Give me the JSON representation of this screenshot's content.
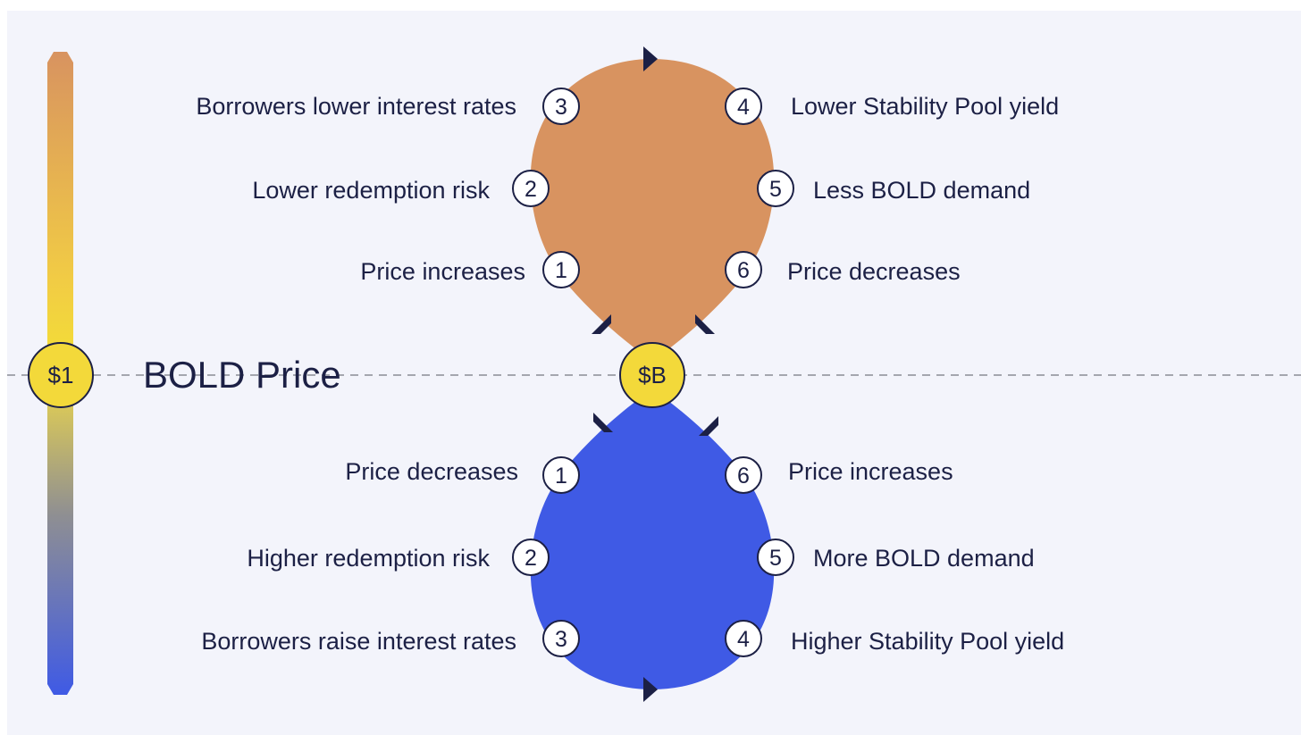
{
  "title": "BOLD Price",
  "scale_coin": "$1",
  "center_coin": "$B",
  "colors": {
    "background": "#f3f4fb",
    "top_loop": "#d89360",
    "bottom_loop": "#3f5ae5",
    "coin": "#f3d93a",
    "ink": "#1c2045"
  },
  "top_loop": {
    "steps": [
      {
        "n": "1",
        "label": "Price increases"
      },
      {
        "n": "2",
        "label": "Lower redemption risk"
      },
      {
        "n": "3",
        "label": "Borrowers lower interest rates"
      },
      {
        "n": "4",
        "label": "Lower Stability Pool yield"
      },
      {
        "n": "5",
        "label": "Less BOLD demand"
      },
      {
        "n": "6",
        "label": "Price decreases"
      }
    ]
  },
  "bottom_loop": {
    "steps": [
      {
        "n": "1",
        "label": "Price decreases"
      },
      {
        "n": "2",
        "label": "Higher redemption risk"
      },
      {
        "n": "3",
        "label": "Borrowers raise interest rates"
      },
      {
        "n": "4",
        "label": "Higher Stability Pool yield"
      },
      {
        "n": "5",
        "label": "More BOLD demand"
      },
      {
        "n": "6",
        "label": "Price increases"
      }
    ]
  }
}
